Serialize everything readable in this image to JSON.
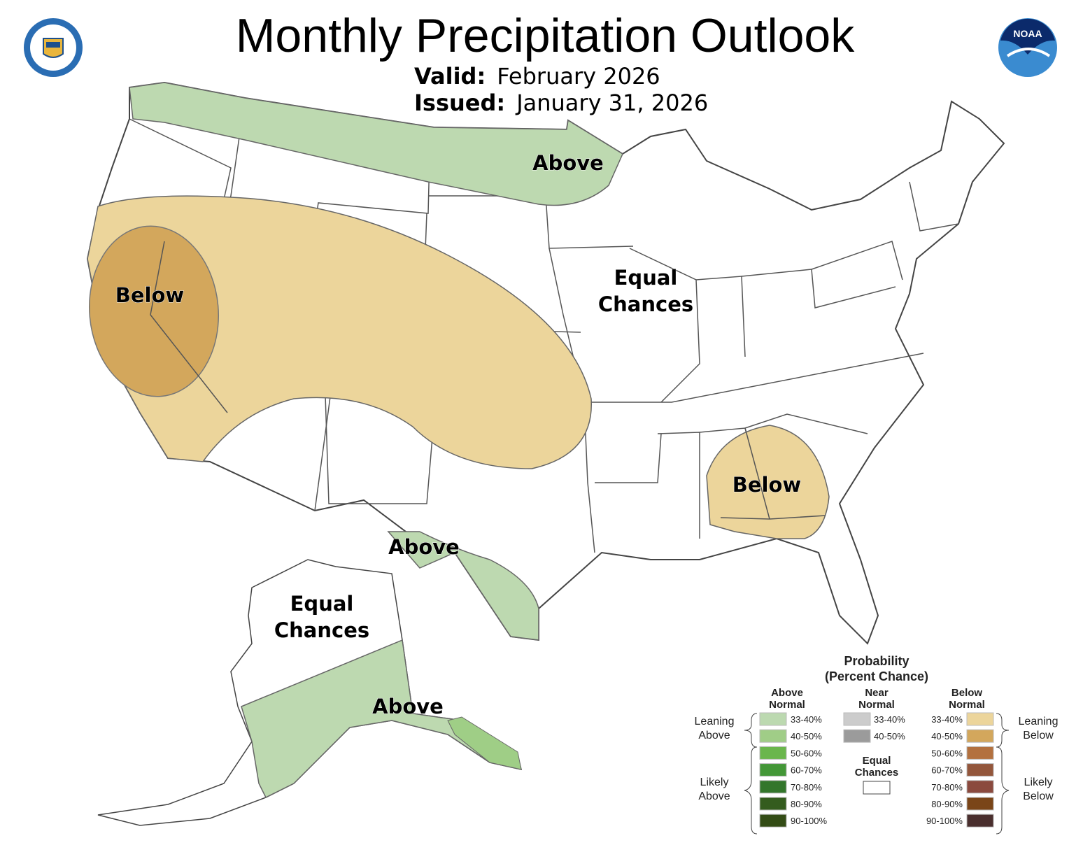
{
  "title": "Monthly Precipitation Outlook",
  "valid_label": "Valid:",
  "valid_value": "February 2026",
  "issued_label": "Issued:",
  "issued_value": "January 31, 2026",
  "logos": {
    "left": "Department of Commerce - United States of America",
    "right": "NOAA"
  },
  "map_labels": {
    "north_above": "Above",
    "west_below": "Below",
    "central_ec1": "Equal",
    "central_ec2": "Chances",
    "se_below": "Below",
    "texas_above": "Above",
    "ak_ec1": "Equal",
    "ak_ec2": "Chances",
    "ak_above": "Above"
  },
  "colors": {
    "above_33_40": "#bdd9b0",
    "above_40_50": "#9fce86",
    "below_33_40": "#ecd59b",
    "below_40_50": "#d3a75c",
    "equal": "#ffffff"
  },
  "legend": {
    "title1": "Probability",
    "title2": "(Percent Chance)",
    "above_header": [
      "Above",
      "Normal"
    ],
    "near_header": [
      "Near",
      "Normal"
    ],
    "below_header": [
      "Below",
      "Normal"
    ],
    "leaning_above": [
      "Leaning",
      "Above"
    ],
    "likely_above": [
      "Likely",
      "Above"
    ],
    "leaning_below": [
      "Leaning",
      "Below"
    ],
    "likely_below": [
      "Likely",
      "Below"
    ],
    "equal": [
      "Equal",
      "Chances"
    ],
    "above": [
      {
        "range": "33-40%",
        "color": "#bcd9b0"
      },
      {
        "range": "40-50%",
        "color": "#a0cd87"
      },
      {
        "range": "50-60%",
        "color": "#6ab64c"
      },
      {
        "range": "60-70%",
        "color": "#439737"
      },
      {
        "range": "70-80%",
        "color": "#33762b"
      },
      {
        "range": "80-90%",
        "color": "#345c1e"
      },
      {
        "range": "90-100%",
        "color": "#334c15"
      }
    ],
    "near": [
      {
        "range": "33-40%",
        "color": "#cccccc"
      },
      {
        "range": "40-50%",
        "color": "#9b9b9b"
      }
    ],
    "below": [
      {
        "range": "33-40%",
        "color": "#ecd59b"
      },
      {
        "range": "40-50%",
        "color": "#d3a75c"
      },
      {
        "range": "50-60%",
        "color": "#b3713f"
      },
      {
        "range": "60-70%",
        "color": "#93563b"
      },
      {
        "range": "70-80%",
        "color": "#8b4a3e"
      },
      {
        "range": "80-90%",
        "color": "#7a4518"
      },
      {
        "range": "90-100%",
        "color": "#4a2f2e"
      }
    ]
  }
}
